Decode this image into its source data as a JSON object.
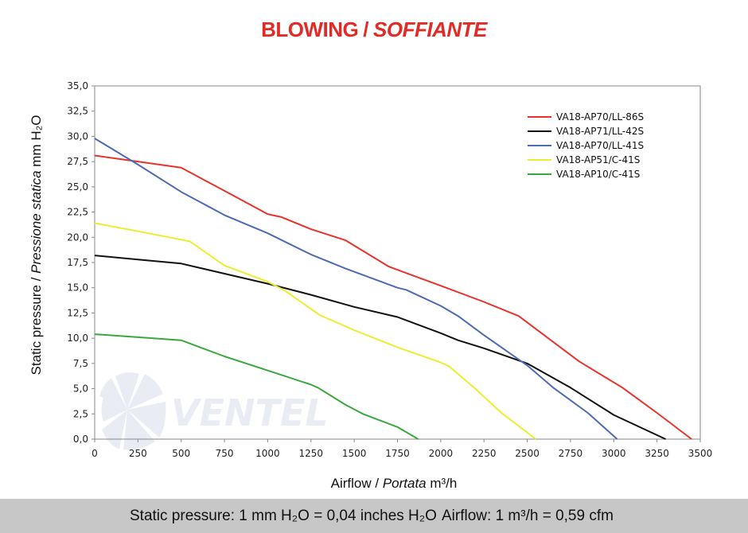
{
  "title": {
    "main": "BLOWING",
    "separator": "/",
    "italic": "SOFFIANTE"
  },
  "footer": {
    "pressure_note": "Static pressure: 1 mm H₂O = 0,04 inches H₂O",
    "airflow_note": "Airflow: 1 m³/h = 0,59 cfm"
  },
  "watermark": {
    "text": "VENTEL"
  },
  "colors": {
    "title": "#e22a26"
  },
  "chart_data": {
    "type": "line",
    "xlabel": {
      "main": "Airflow",
      "sep": " / ",
      "italic": "Portata",
      "unit": " m³/h"
    },
    "ylabel": {
      "main": "Static pressure",
      "sep": " / ",
      "italic": "Pressione statica",
      "unit": " mm H₂O"
    },
    "xlim": [
      0,
      3500
    ],
    "ylim": [
      0,
      35
    ],
    "xticks": [
      0,
      250,
      500,
      750,
      1000,
      1250,
      1500,
      1750,
      2000,
      2250,
      2500,
      2750,
      3000,
      3250,
      3500
    ],
    "yticks": [
      "0,0",
      "2,5",
      "5,0",
      "7,5",
      "10,0",
      "12,5",
      "15,0",
      "17,5",
      "20,0",
      "22,5",
      "25,0",
      "27,5",
      "30,0",
      "32,5",
      "35,0"
    ],
    "grid": false,
    "legend_position": "top-right",
    "series": [
      {
        "name": "VA18-AP70/LL-86S",
        "color": "#e8322c",
        "points": [
          [
            0,
            28.1
          ],
          [
            250,
            27.5
          ],
          [
            500,
            26.9
          ],
          [
            750,
            24.6
          ],
          [
            1000,
            22.3
          ],
          [
            1080,
            22.0
          ],
          [
            1250,
            20.8
          ],
          [
            1450,
            19.7
          ],
          [
            1700,
            17.1
          ],
          [
            2000,
            15.2
          ],
          [
            2250,
            13.6
          ],
          [
            2450,
            12.2
          ],
          [
            2800,
            7.7
          ],
          [
            3050,
            5.1
          ],
          [
            3250,
            2.6
          ],
          [
            3450,
            0
          ]
        ]
      },
      {
        "name": "VA18-AP71/LL-42S",
        "color": "#111111",
        "points": [
          [
            0,
            18.2
          ],
          [
            250,
            17.8
          ],
          [
            500,
            17.4
          ],
          [
            750,
            16.4
          ],
          [
            1000,
            15.4
          ],
          [
            1250,
            14.3
          ],
          [
            1500,
            13.1
          ],
          [
            1750,
            12.1
          ],
          [
            2000,
            10.5
          ],
          [
            2100,
            9.8
          ],
          [
            2250,
            9.0
          ],
          [
            2500,
            7.5
          ],
          [
            2750,
            5.1
          ],
          [
            3000,
            2.4
          ],
          [
            3300,
            0
          ]
        ]
      },
      {
        "name": "VA18-AP70/LL-41S",
        "color": "#4d6ab5",
        "points": [
          [
            0,
            29.8
          ],
          [
            250,
            27.2
          ],
          [
            500,
            24.5
          ],
          [
            750,
            22.2
          ],
          [
            1000,
            20.4
          ],
          [
            1250,
            18.3
          ],
          [
            1450,
            16.9
          ],
          [
            1750,
            15.0
          ],
          [
            1800,
            14.8
          ],
          [
            2000,
            13.2
          ],
          [
            2100,
            12.2
          ],
          [
            2250,
            10.3
          ],
          [
            2500,
            7.3
          ],
          [
            2650,
            5.1
          ],
          [
            2850,
            2.6
          ],
          [
            3020,
            0
          ]
        ]
      },
      {
        "name": "VA18-AP51/C-41S",
        "color": "#eded30",
        "points": [
          [
            0,
            21.4
          ],
          [
            250,
            20.6
          ],
          [
            550,
            19.6
          ],
          [
            750,
            17.2
          ],
          [
            1000,
            15.6
          ],
          [
            1100,
            14.7
          ],
          [
            1300,
            12.3
          ],
          [
            1500,
            10.8
          ],
          [
            1750,
            9.1
          ],
          [
            2000,
            7.6
          ],
          [
            2050,
            7.2
          ],
          [
            2200,
            5.0
          ],
          [
            2350,
            2.6
          ],
          [
            2550,
            0
          ]
        ]
      },
      {
        "name": "VA18-AP10/C-41S",
        "color": "#3aa83f",
        "points": [
          [
            0,
            10.4
          ],
          [
            250,
            10.1
          ],
          [
            500,
            9.8
          ],
          [
            750,
            8.2
          ],
          [
            1000,
            6.8
          ],
          [
            1250,
            5.4
          ],
          [
            1290,
            5.1
          ],
          [
            1450,
            3.4
          ],
          [
            1550,
            2.5
          ],
          [
            1750,
            1.2
          ],
          [
            1870,
            0
          ]
        ]
      }
    ]
  }
}
